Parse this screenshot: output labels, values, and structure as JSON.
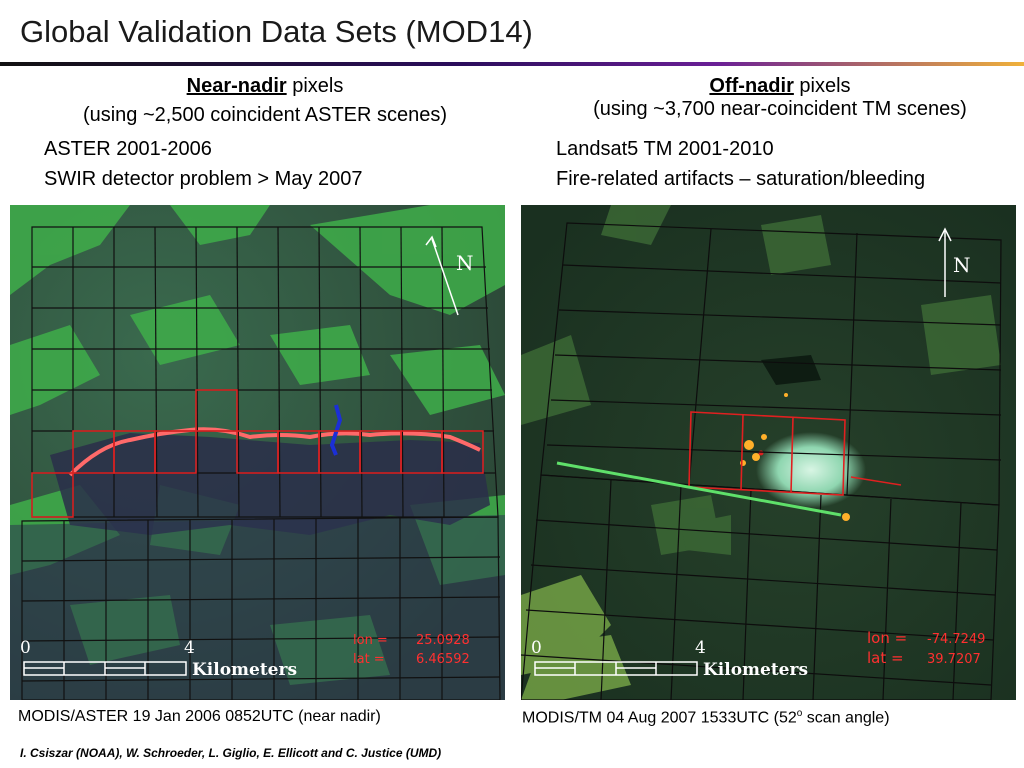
{
  "slide": {
    "title": "Global Validation Data Sets (MOD14)",
    "credit": "I. Csiszar (NOAA), W. Schroeder, L. Giglio, E. Ellicott and C. Justice (UMD)"
  },
  "left": {
    "heading_bold": "Near-nadir",
    "heading_rest": " pixels",
    "subheading": "(using ~2,500 coincident ASTER scenes)",
    "line1": "ASTER 2001-2006",
    "line2": "SWIR detector problem > May 2007",
    "caption": "MODIS/ASTER 19 Jan 2006 0852UTC (near nadir)",
    "scale_zero": "0",
    "scale_four": "4",
    "scale_unit": "Kilometers",
    "north": "N",
    "lon_label": "lon =",
    "lon_value": "25.0928",
    "lat_label": "lat =",
    "lat_value": "6.46592"
  },
  "right": {
    "heading_bold": "Off-nadir",
    "heading_rest": " pixels",
    "subheading": "(using ~3,700 near-coincident TM scenes)",
    "line1": "Landsat5 TM 2001-2010",
    "line2": "Fire-related artifacts – saturation/bleeding",
    "caption_main": "MODIS/TM 04 Aug 2007 1533UTC (52",
    "caption_sup": "o",
    "caption_end": " scan angle)",
    "scale_zero": "0",
    "scale_four": "4",
    "scale_unit": "Kilometers",
    "north": "N",
    "lon_label": "lon =",
    "lon_value": "-74.7249",
    "lat_label": "lat =",
    "lat_value": "39.7207"
  },
  "colors": {
    "grid_line": "#111111",
    "fire_pixel": "#e02020",
    "annotation_red": "#ff3030",
    "left_bg": "#2d4c3a",
    "right_bg": "#1f3a22"
  }
}
